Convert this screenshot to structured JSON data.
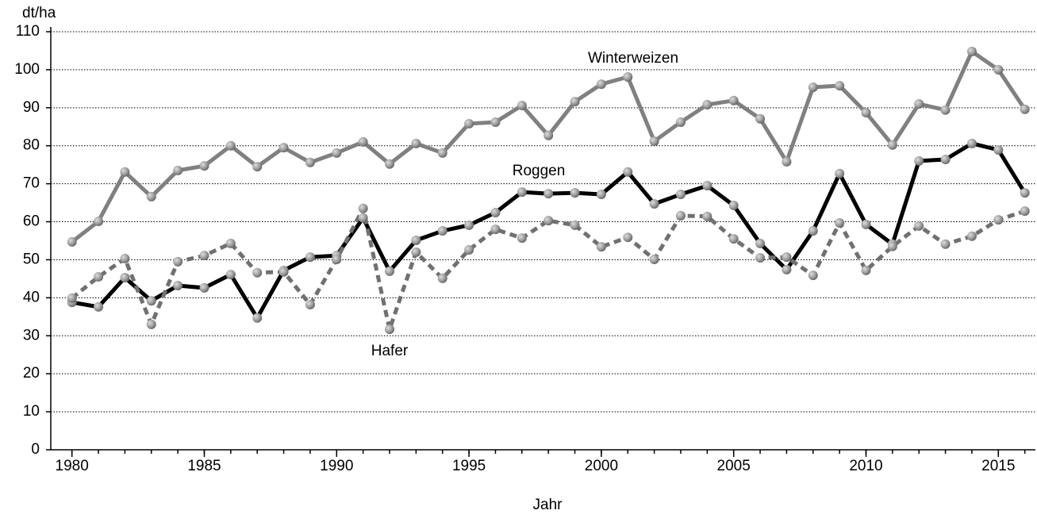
{
  "chart_data": {
    "type": "line",
    "y_label": "dt/ha",
    "x_label": "Jahr",
    "x": [
      1980,
      1981,
      1982,
      1983,
      1984,
      1985,
      1986,
      1987,
      1988,
      1989,
      1990,
      1991,
      1992,
      1993,
      1994,
      1995,
      1996,
      1997,
      1998,
      1999,
      2000,
      2001,
      2002,
      2003,
      2004,
      2005,
      2006,
      2007,
      2008,
      2009,
      2010,
      2011,
      2012,
      2013,
      2014,
      2015,
      2016
    ],
    "series": [
      {
        "name": "Winterweizen",
        "color": "#808080",
        "dashed": false,
        "values": [
          54.7,
          60.1,
          73.1,
          66.6,
          73.5,
          74.7,
          80.0,
          74.5,
          79.5,
          75.6,
          78.1,
          81.0,
          75.2,
          80.6,
          78.1,
          85.8,
          86.2,
          90.6,
          82.7,
          91.6,
          96.2,
          98.1,
          81.2,
          86.2,
          90.8,
          91.9,
          87.1,
          75.8,
          95.4,
          95.8,
          88.7,
          80.2,
          91.0,
          89.4,
          104.8,
          100.0,
          89.6
        ]
      },
      {
        "name": "Roggen",
        "color": "#000000",
        "dashed": false,
        "values": [
          38.8,
          37.6,
          45.3,
          39.2,
          43.2,
          42.6,
          46.1,
          34.7,
          47.2,
          50.7,
          51.1,
          61.0,
          47.0,
          55.1,
          57.6,
          59.1,
          62.4,
          67.8,
          67.4,
          67.6,
          67.2,
          73.1,
          64.7,
          67.2,
          69.5,
          64.3,
          54.3,
          47.4,
          57.6,
          72.7,
          59.3,
          54.1,
          76.0,
          76.4,
          80.6,
          78.9,
          67.6
        ]
      },
      {
        "name": "Hafer",
        "color": "#707070",
        "dashed": true,
        "values": [
          39.9,
          45.5,
          50.3,
          33.0,
          49.5,
          51.1,
          54.3,
          46.6,
          46.8,
          38.2,
          50.1,
          63.5,
          31.7,
          52.0,
          45.1,
          52.6,
          58.0,
          55.7,
          60.3,
          59.1,
          53.4,
          55.9,
          50.1,
          61.6,
          61.4,
          55.5,
          50.5,
          50.7,
          45.9,
          59.7,
          47.2,
          53.5,
          58.9,
          54.1,
          56.2,
          60.5,
          62.8
        ]
      }
    ],
    "xlim": [
      1979.2,
      2016.4
    ],
    "xticks": [
      1980,
      1985,
      1990,
      1995,
      2000,
      2005,
      2010,
      2015
    ],
    "ylim": [
      0,
      110
    ],
    "yticks": [
      0,
      10,
      20,
      30,
      40,
      50,
      60,
      70,
      80,
      90,
      100,
      110
    ],
    "grid": true
  }
}
